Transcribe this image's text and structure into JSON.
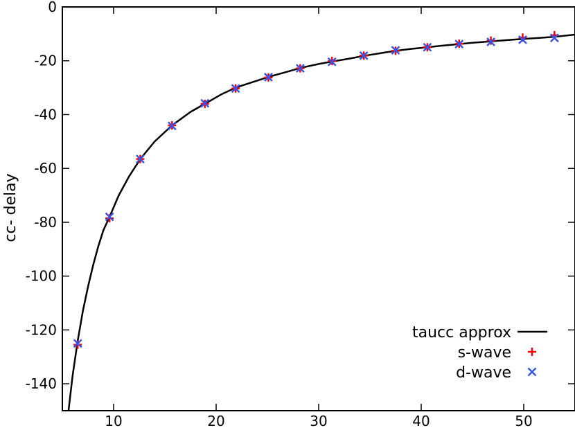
{
  "chart_data": {
    "type": "line",
    "title": "",
    "xlabel": "",
    "ylabel": "cc- delay",
    "xlim": [
      5,
      55
    ],
    "ylim": [
      -150,
      0
    ],
    "xticks": [
      10,
      20,
      30,
      40,
      50
    ],
    "yticks": [
      0,
      -20,
      -40,
      -60,
      -80,
      -100,
      -120,
      -140
    ],
    "grid": false,
    "legend_position": "bottom-right",
    "series": [
      {
        "name": "taucc approx",
        "kind": "line",
        "color": "#000000",
        "x": [
          5.6,
          6.0,
          6.5,
          7.0,
          7.5,
          8.0,
          8.5,
          9.0,
          9.6,
          10.5,
          11.5,
          12.6,
          14,
          15.7,
          17.5,
          18.9,
          20.5,
          21.9,
          23.5,
          25.1,
          27,
          28.2,
          30,
          31.3,
          33,
          34.4,
          36,
          37.5,
          39,
          40.6,
          42,
          43.7,
          45,
          46.8,
          48.5,
          49.9,
          51.5,
          53.0,
          55
        ],
        "y": [
          -150,
          -137,
          -124,
          -113,
          -104,
          -96,
          -89,
          -83,
          -78,
          -70,
          -63,
          -56.5,
          -50,
          -44,
          -39,
          -36,
          -32.5,
          -30,
          -28,
          -26,
          -24,
          -22.7,
          -21.2,
          -20.3,
          -19.2,
          -18.2,
          -17.2,
          -16.3,
          -15.6,
          -15,
          -14.4,
          -13.8,
          -13.3,
          -12.8,
          -12.3,
          -11.9,
          -11.5,
          -11.1,
          -10.3
        ]
      },
      {
        "name": "s-wave",
        "kind": "plus",
        "color": "#ff0000",
        "x": [
          6.5,
          9.6,
          12.6,
          15.7,
          18.9,
          21.9,
          25.1,
          28.2,
          31.3,
          34.4,
          37.5,
          40.6,
          43.7,
          46.8,
          49.9,
          53.0
        ],
        "y": [
          -125.5,
          -78.5,
          -56.5,
          -44,
          -36,
          -30.3,
          -26.2,
          -22.8,
          -20.1,
          -18.1,
          -16.3,
          -15.0,
          -13.7,
          -12.5,
          -11.4,
          -10.5
        ]
      },
      {
        "name": "d-wave",
        "kind": "cross",
        "color": "#3355ee",
        "x": [
          6.5,
          9.6,
          12.6,
          15.7,
          18.9,
          21.9,
          25.1,
          28.2,
          31.3,
          34.4,
          37.5,
          40.6,
          43.7,
          46.8,
          49.9,
          53.0
        ],
        "y": [
          -125,
          -78,
          -56.5,
          -44.2,
          -35.8,
          -30.3,
          -26.1,
          -22.8,
          -20.4,
          -18.1,
          -16.1,
          -15.0,
          -13.8,
          -13.0,
          -12.2,
          -11.5
        ]
      }
    ]
  }
}
